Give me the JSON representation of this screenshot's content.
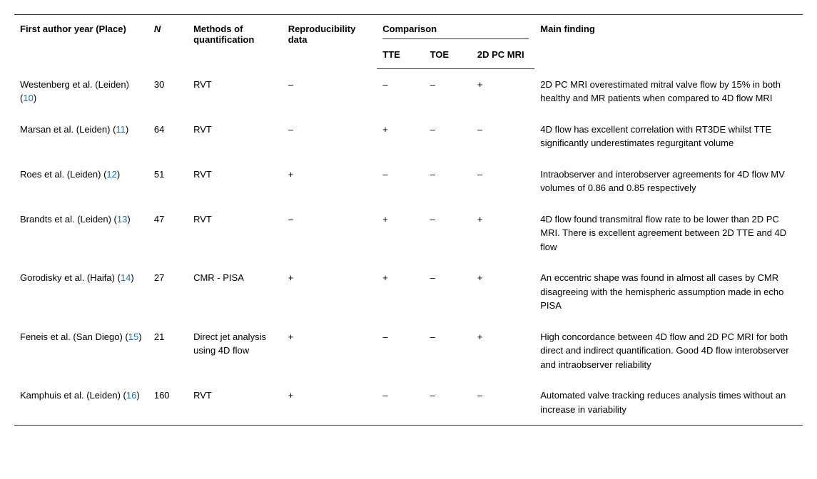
{
  "headers": {
    "author": "First author year (Place)",
    "n": "N",
    "methods": "Methods of quantification",
    "repro": "Reproducibility data",
    "comparison_group": "Comparison",
    "tte": "TTE",
    "toe": "TOE",
    "mri": "2D PC MRI",
    "finding": "Main finding"
  },
  "rows": [
    {
      "author_prefix": "Westenberg et al. (Leiden) (",
      "author_ref": "10",
      "author_suffix": ")",
      "n": "30",
      "methods": "RVT",
      "repro": "–",
      "tte": "–",
      "toe": "–",
      "mri": "+",
      "finding": "2D PC MRI overestimated mitral valve flow by 15% in both healthy and MR patients when compared to 4D flow MRI"
    },
    {
      "author_prefix": "Marsan et al. (Leiden) (",
      "author_ref": "11",
      "author_suffix": ")",
      "n": "64",
      "methods": "RVT",
      "repro": "–",
      "tte": "+",
      "toe": "–",
      "mri": "–",
      "finding": "4D flow has excellent correlation with RT3DE whilst TTE significantly underestimates regurgitant volume"
    },
    {
      "author_prefix": "Roes et al. (Leiden) (",
      "author_ref": "12",
      "author_suffix": ")",
      "n": "51",
      "methods": "RVT",
      "repro": "+",
      "tte": "–",
      "toe": "–",
      "mri": "–",
      "finding": "Intraobserver and interobserver agreements for 4D flow MV volumes of 0.86 and 0.85 respectively"
    },
    {
      "author_prefix": "Brandts et al. (Leiden) (",
      "author_ref": "13",
      "author_suffix": ")",
      "n": "47",
      "methods": "RVT",
      "repro": "–",
      "tte": "+",
      "toe": "–",
      "mri": "+",
      "finding": "4D flow found transmitral flow rate to be lower than 2D PC MRI. There is excellent agreement between 2D TTE and 4D flow"
    },
    {
      "author_prefix": "Gorodisky et al. (Haifa) (",
      "author_ref": "14",
      "author_suffix": ")",
      "n": "27",
      "methods": "CMR - PISA",
      "repro": "+",
      "tte": "+",
      "toe": "–",
      "mri": "+",
      "finding": "An eccentric shape was found in almost all cases by CMR disagreeing with the hemispheric assumption made in echo PISA"
    },
    {
      "author_prefix": "Feneis et al. (San Diego) (",
      "author_ref": "15",
      "author_suffix": ")",
      "n": "21",
      "methods": "Direct jet analysis using 4D flow",
      "repro": "+",
      "tte": "–",
      "toe": "–",
      "mri": "+",
      "finding": "High concordance between 4D flow and 2D PC MRI for both direct and indirect quantification. Good 4D flow interobserver and intraobserver reliability"
    },
    {
      "author_prefix": "Kamphuis et al. (Leiden) (",
      "author_ref": "16",
      "author_suffix": ")",
      "n": "160",
      "methods": "RVT",
      "repro": "+",
      "tte": "–",
      "toe": "–",
      "mri": "–",
      "finding": "Automated valve tracking reduces analysis times without an increase in variability"
    }
  ]
}
